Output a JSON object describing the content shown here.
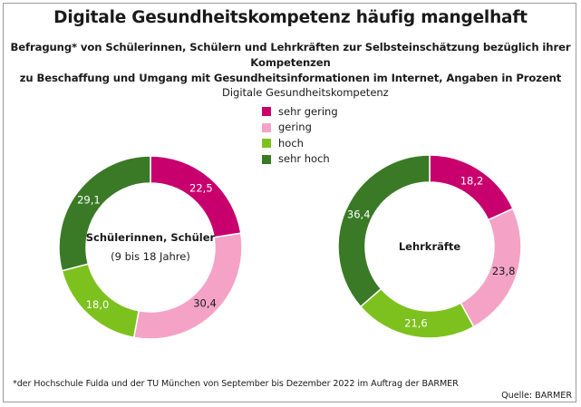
{
  "title": "Digitale Gesundheitskompetenz häufig mangelhaft",
  "subtitle_line1": "Befragung* von Schülerinnen, Schülern und Lehrkräften zur Selbsteinschätzung bezüglich ihrer Kompetenzen",
  "subtitle_line2": "zu Beschaffung und Umgang mit Gesundheitsinformationen im Internet, Angaben in Prozent",
  "legend": {
    "title": "Digitale Gesundheitskompetenz",
    "items": [
      {
        "label": "sehr gering",
        "color": "#c8006e"
      },
      {
        "label": "gering",
        "color": "#f4a3c6"
      },
      {
        "label": "hoch",
        "color": "#7dc11e"
      },
      {
        "label": "sehr hoch",
        "color": "#3a7a26"
      }
    ]
  },
  "chart_data": [
    {
      "type": "pie",
      "variant": "donut",
      "center_label": "Schülerinnen, Schüler",
      "center_sublabel": "(9 bis 18 Jahre)",
      "categories": [
        "sehr gering",
        "gering",
        "hoch",
        "sehr hoch"
      ],
      "values": [
        22.5,
        30.4,
        18.0,
        29.1
      ],
      "value_labels": [
        "22,5",
        "30,4",
        "18,0",
        "29,1"
      ]
    },
    {
      "type": "pie",
      "variant": "donut",
      "center_label": "Lehrkräfte",
      "center_sublabel": "",
      "categories": [
        "sehr gering",
        "gering",
        "hoch",
        "sehr hoch"
      ],
      "values": [
        18.2,
        23.8,
        21.6,
        36.4
      ],
      "value_labels": [
        "18,2",
        "23,8",
        "21,6",
        "36,4"
      ]
    }
  ],
  "footnote": "*der Hochschule Fulda und der TU München von September bis Dezember 2022 im Auftrag der BARMER",
  "source": "Quelle: BARMER"
}
